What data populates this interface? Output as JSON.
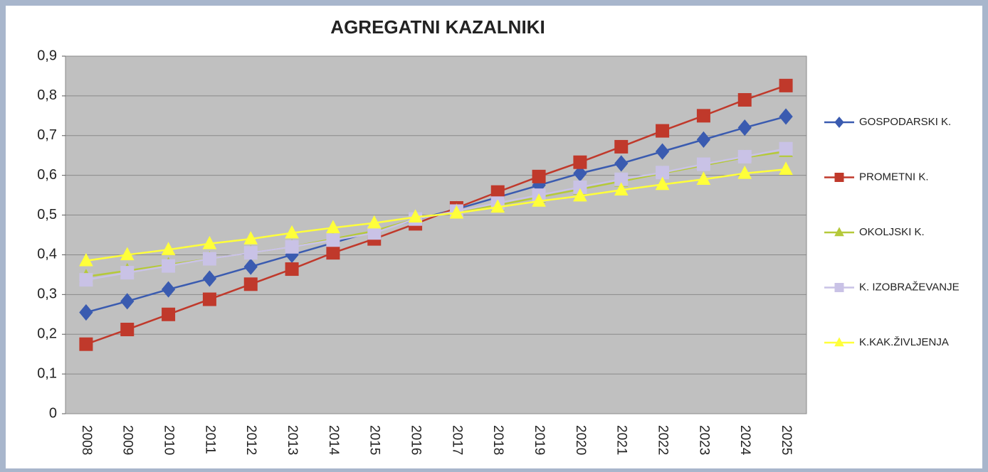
{
  "chart_data": {
    "type": "line",
    "title": "AGREGATNI KAZALNIKI",
    "categories": [
      "2008",
      "2009",
      "2010",
      "2011",
      "2012",
      "2013",
      "2014",
      "2015",
      "2016",
      "2017",
      "2018",
      "2019",
      "2020",
      "2021",
      "2022",
      "2023",
      "2024",
      "2025"
    ],
    "series": [
      {
        "name": "GOSPODARSKI K.",
        "color": "#3a5bb0",
        "marker": "diamond",
        "values": [
          0.255,
          0.283,
          0.313,
          0.34,
          0.37,
          0.4,
          0.43,
          0.46,
          0.488,
          0.515,
          0.545,
          0.575,
          0.605,
          0.63,
          0.66,
          0.69,
          0.72,
          0.748
        ]
      },
      {
        "name": "PROMETNI K.",
        "color": "#c0392b",
        "marker": "square",
        "values": [
          0.175,
          0.212,
          0.25,
          0.288,
          0.326,
          0.364,
          0.405,
          0.44,
          0.478,
          0.518,
          0.558,
          0.597,
          0.633,
          0.672,
          0.712,
          0.75,
          0.79,
          0.826
        ]
      },
      {
        "name": "OKOLJSKI K.",
        "color": "#b5c93a",
        "marker": "triangle",
        "values": [
          0.345,
          0.36,
          0.375,
          0.39,
          0.405,
          0.42,
          0.44,
          0.46,
          0.49,
          0.51,
          0.525,
          0.545,
          0.565,
          0.585,
          0.605,
          0.625,
          0.645,
          0.66
        ]
      },
      {
        "name": "K. IZOBRAŽEVANJE",
        "color": "#c9c2e6",
        "marker": "square",
        "values": [
          0.337,
          0.355,
          0.372,
          0.39,
          0.405,
          0.42,
          0.437,
          0.455,
          0.49,
          0.51,
          0.53,
          0.55,
          0.57,
          0.59,
          0.607,
          0.628,
          0.647,
          0.667
        ]
      },
      {
        "name": "K.KAK.ŽIVLJENJA",
        "color": "#ffff3a",
        "marker": "triangle",
        "values": [
          0.385,
          0.4,
          0.413,
          0.428,
          0.44,
          0.455,
          0.468,
          0.48,
          0.495,
          0.505,
          0.52,
          0.535,
          0.548,
          0.563,
          0.577,
          0.59,
          0.605,
          0.615
        ]
      }
    ],
    "ylim": [
      0,
      0.9
    ],
    "yticks": [
      0,
      {
        "value": 0.1,
        "label": "0,1"
      },
      {
        "value": 0.2,
        "label": "0,2"
      },
      {
        "value": 0.3,
        "label": "0,3"
      },
      {
        "value": 0.4,
        "label": "0,4"
      },
      {
        "value": 0.5,
        "label": "0,5"
      },
      {
        "value": 0.6,
        "label": "0,6"
      },
      {
        "value": 0.7,
        "label": "0,7"
      },
      {
        "value": 0.8,
        "label": "0,8"
      },
      {
        "value": 0.9,
        "label": "0,9"
      }
    ],
    "grid": true,
    "legend": "right"
  }
}
